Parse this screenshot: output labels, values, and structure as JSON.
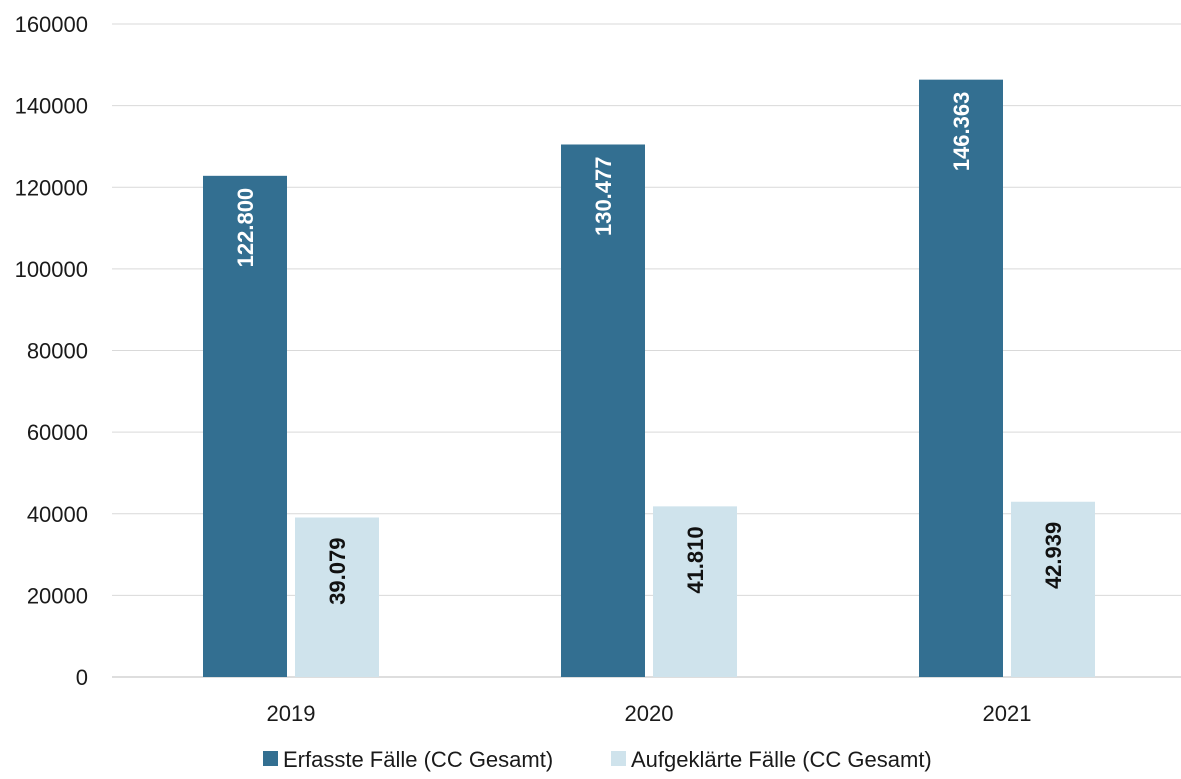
{
  "chart_data": {
    "type": "bar",
    "categories": [
      "2019",
      "2020",
      "2021"
    ],
    "series": [
      {
        "name": "Erfasste Fälle (CC Gesamt)",
        "color": "#336f91",
        "values": [
          122800,
          130477,
          146363
        ],
        "labels": [
          "122.800",
          "130.477",
          "146.363"
        ]
      },
      {
        "name": "Aufgeklärte Fälle (CC Gesamt)",
        "color": "#cfe3ec",
        "values": [
          39079,
          41810,
          42939
        ],
        "labels": [
          "39.079",
          "41.810",
          "42.939"
        ]
      }
    ],
    "yticks": [
      "0",
      "20000",
      "40000",
      "60000",
      "80000",
      "100000",
      "120000",
      "140000",
      "160000"
    ],
    "ylim": [
      0,
      160000
    ],
    "grid": true,
    "legend_position": "bottom",
    "title": "",
    "xlabel": "",
    "ylabel": ""
  }
}
